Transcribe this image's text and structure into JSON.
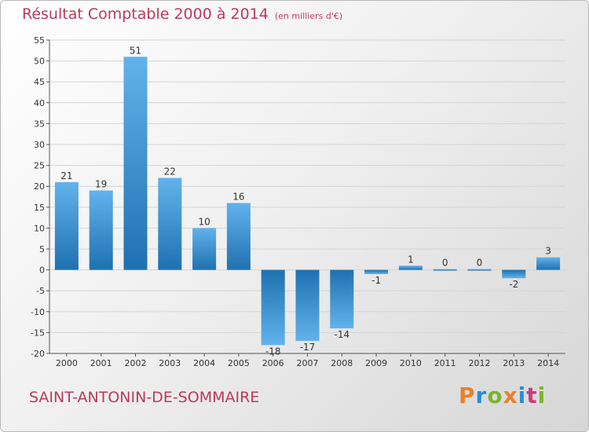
{
  "title": "Résultat Comptable 2000 à 2014",
  "unit": "(en milliers d'€)",
  "commune": "SAINT-ANTONIN-DE-SOMMAIRE",
  "logo": {
    "text": "Proxiti",
    "colors": [
      "#e8812c",
      "#2b8dd3",
      "#7ab52e",
      "#e8812c",
      "#2b8dd3",
      "#c93c7a",
      "#7ab52e"
    ]
  },
  "colors": {
    "bar_top": "#62b2ec",
    "bar_bottom": "#1e71b0",
    "title": "#b83b5e"
  },
  "chart_data": {
    "type": "bar",
    "categories": [
      "2000",
      "2001",
      "2002",
      "2003",
      "2004",
      "2005",
      "2006",
      "2007",
      "2008",
      "2009",
      "2010",
      "2011",
      "2012",
      "2013",
      "2014"
    ],
    "values": [
      21,
      19,
      51,
      22,
      10,
      16,
      -18,
      -17,
      -14,
      -1,
      1,
      0,
      0,
      -2,
      3
    ],
    "labels": [
      "21",
      "19",
      "51",
      "22",
      "10",
      "16",
      "-18",
      "-17",
      "-14",
      "-1",
      "1",
      "0",
      "0",
      "-2",
      "3"
    ],
    "ylim": [
      -20,
      55
    ],
    "yticks": [
      -20,
      -15,
      -10,
      -5,
      0,
      5,
      10,
      15,
      20,
      25,
      30,
      35,
      40,
      45,
      50,
      55
    ],
    "grid": true
  }
}
